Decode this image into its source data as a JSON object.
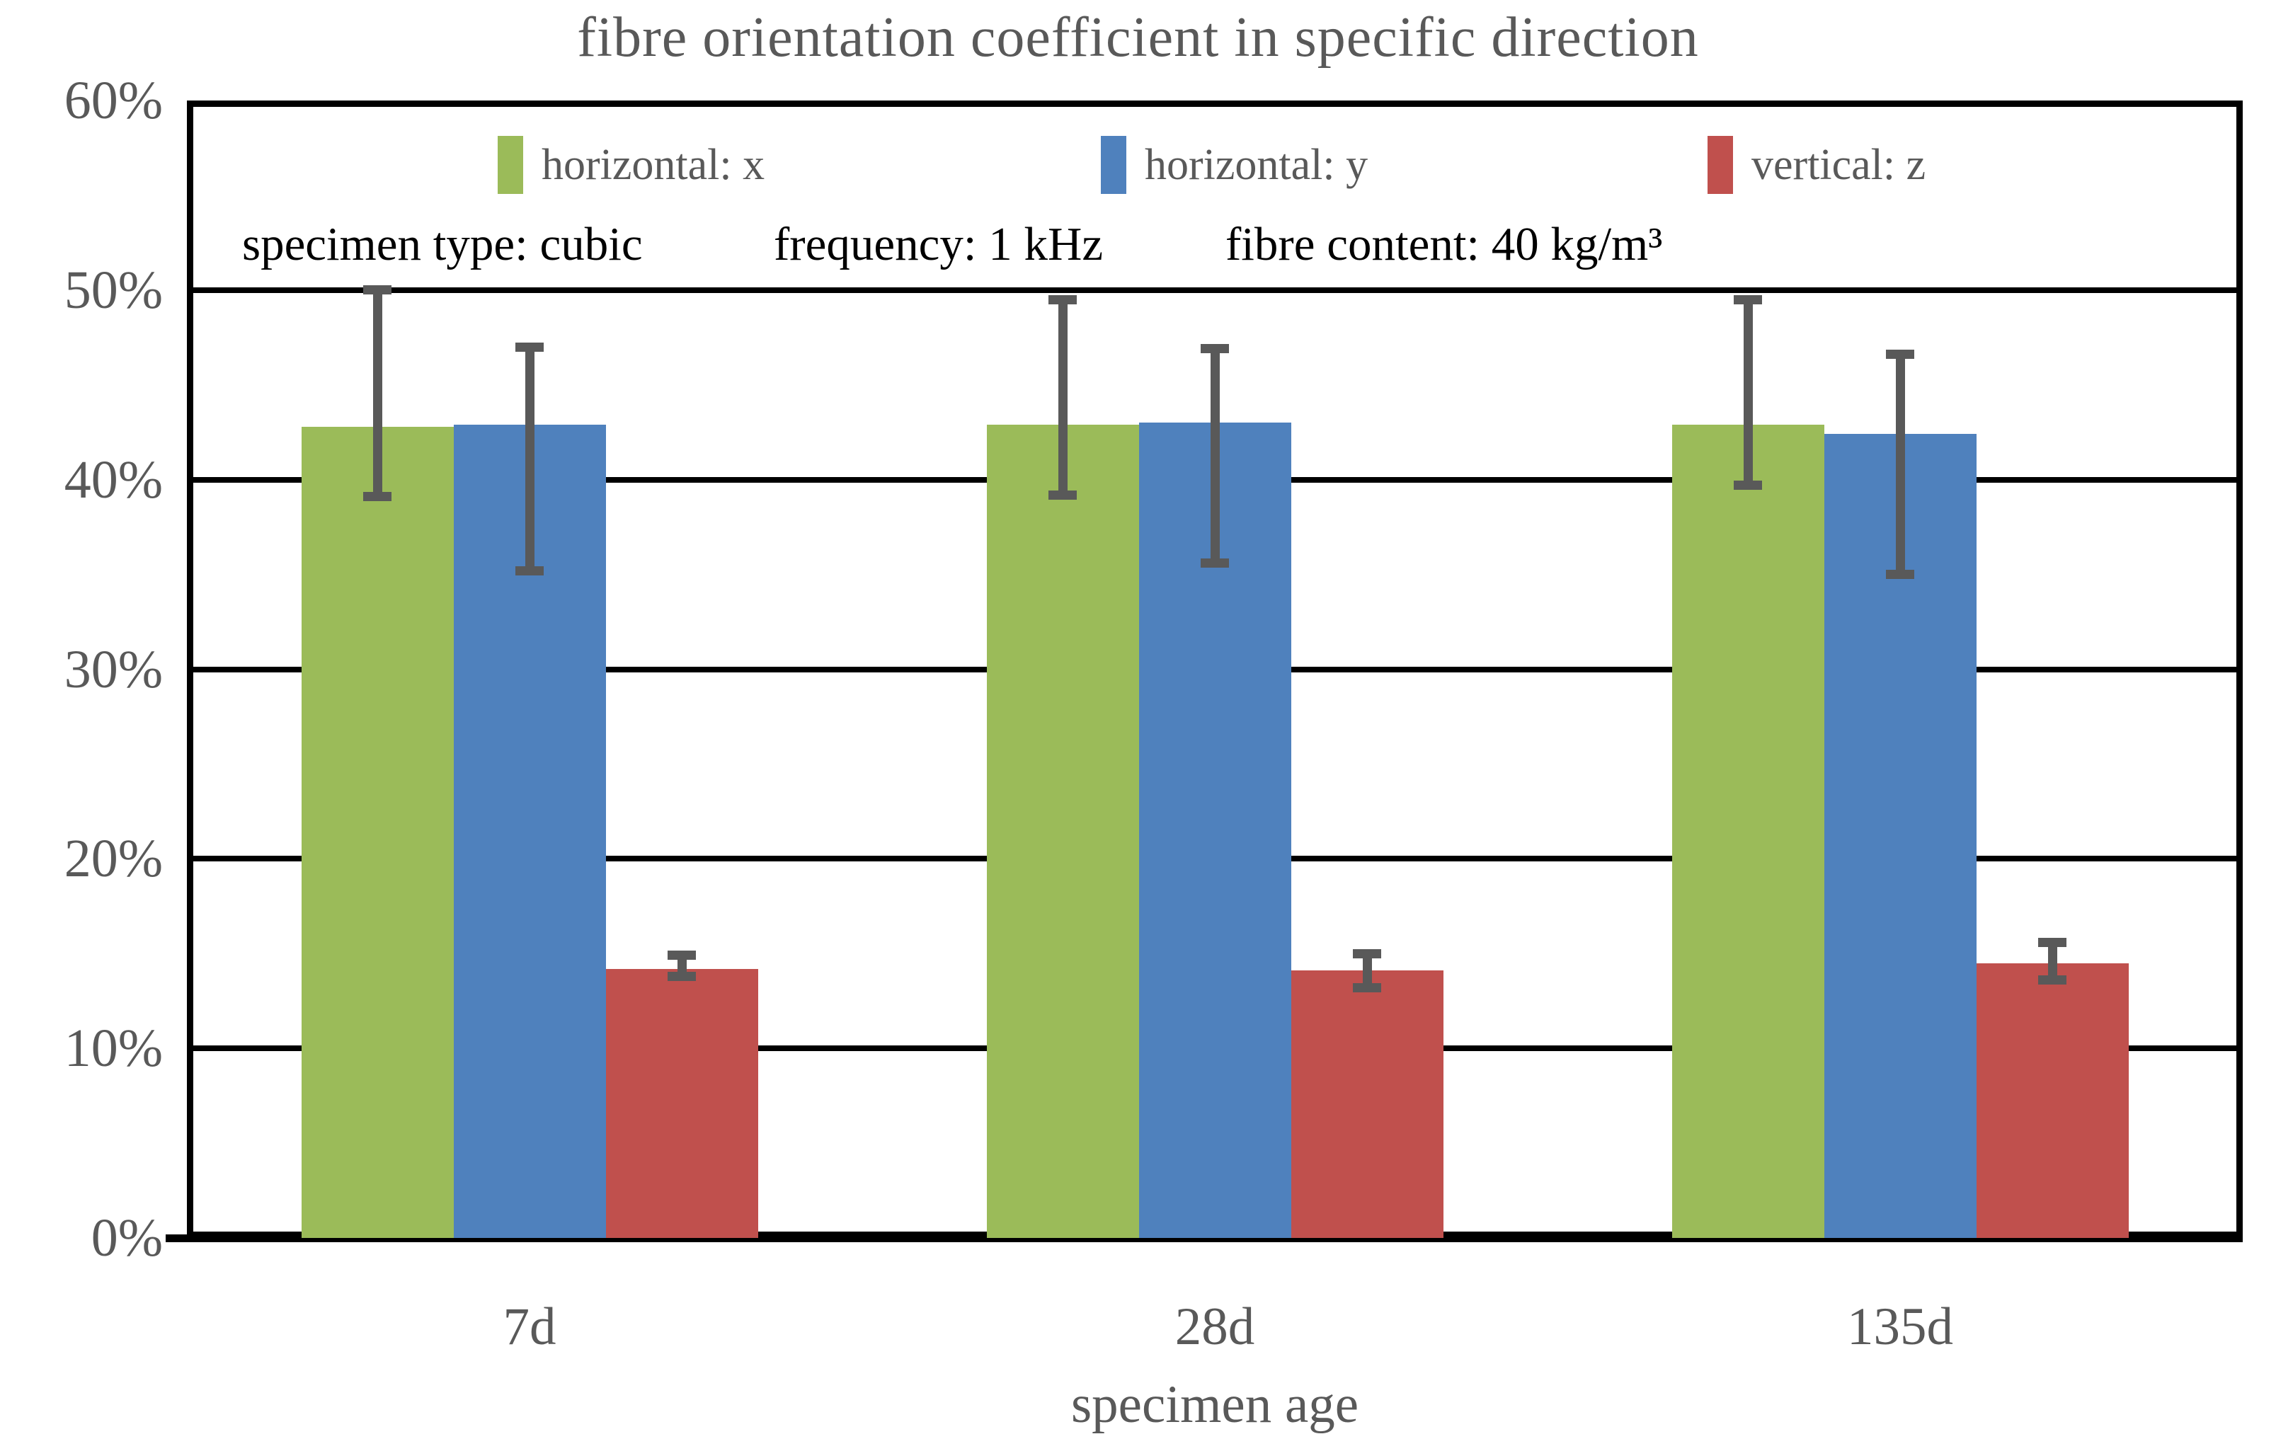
{
  "title": "fibre orientation coefficient in specific direction",
  "annotations": {
    "specimen_type": "specimen type: cubic",
    "frequency": "frequency: 1 kHz",
    "fibre_content": "fibre content: 40 kg/m³"
  },
  "colors": {
    "series_green": "#9BBB59",
    "series_blue": "#4F81BD",
    "series_red": "#C0504D",
    "text_gray": "#595959",
    "grid_line": "#000000",
    "error_bar": "#595959",
    "background": "#FFFFFF"
  },
  "chart_data": {
    "type": "bar",
    "title": "fibre orientation coefficient in specific direction",
    "xlabel": "specimen age",
    "ylabel": "",
    "categories": [
      "7d",
      "28d",
      "135d"
    ],
    "ylim": [
      0,
      60
    ],
    "ytick_step": 10,
    "ytick_labels": [
      "0%",
      "10%",
      "20%",
      "30%",
      "40%",
      "50%",
      "60%"
    ],
    "grid": true,
    "legend_position": "top-inside",
    "series": [
      {
        "name": "horizontal: x",
        "color": "#9BBB59",
        "values": [
          42.8,
          42.9,
          42.9
        ],
        "error_low": [
          39.1,
          39.2,
          39.7
        ],
        "error_high": [
          50.0,
          49.5,
          49.5
        ]
      },
      {
        "name": "horizontal: y",
        "color": "#4F81BD",
        "values": [
          42.9,
          43.0,
          42.4
        ],
        "error_low": [
          35.2,
          35.6,
          35.0
        ],
        "error_high": [
          47.0,
          46.9,
          46.6
        ]
      },
      {
        "name": "vertical: z",
        "color": "#C0504D",
        "values": [
          14.2,
          14.1,
          14.5
        ],
        "error_low": [
          13.8,
          13.2,
          13.6
        ],
        "error_high": [
          14.9,
          15.0,
          15.6
        ]
      }
    ]
  }
}
